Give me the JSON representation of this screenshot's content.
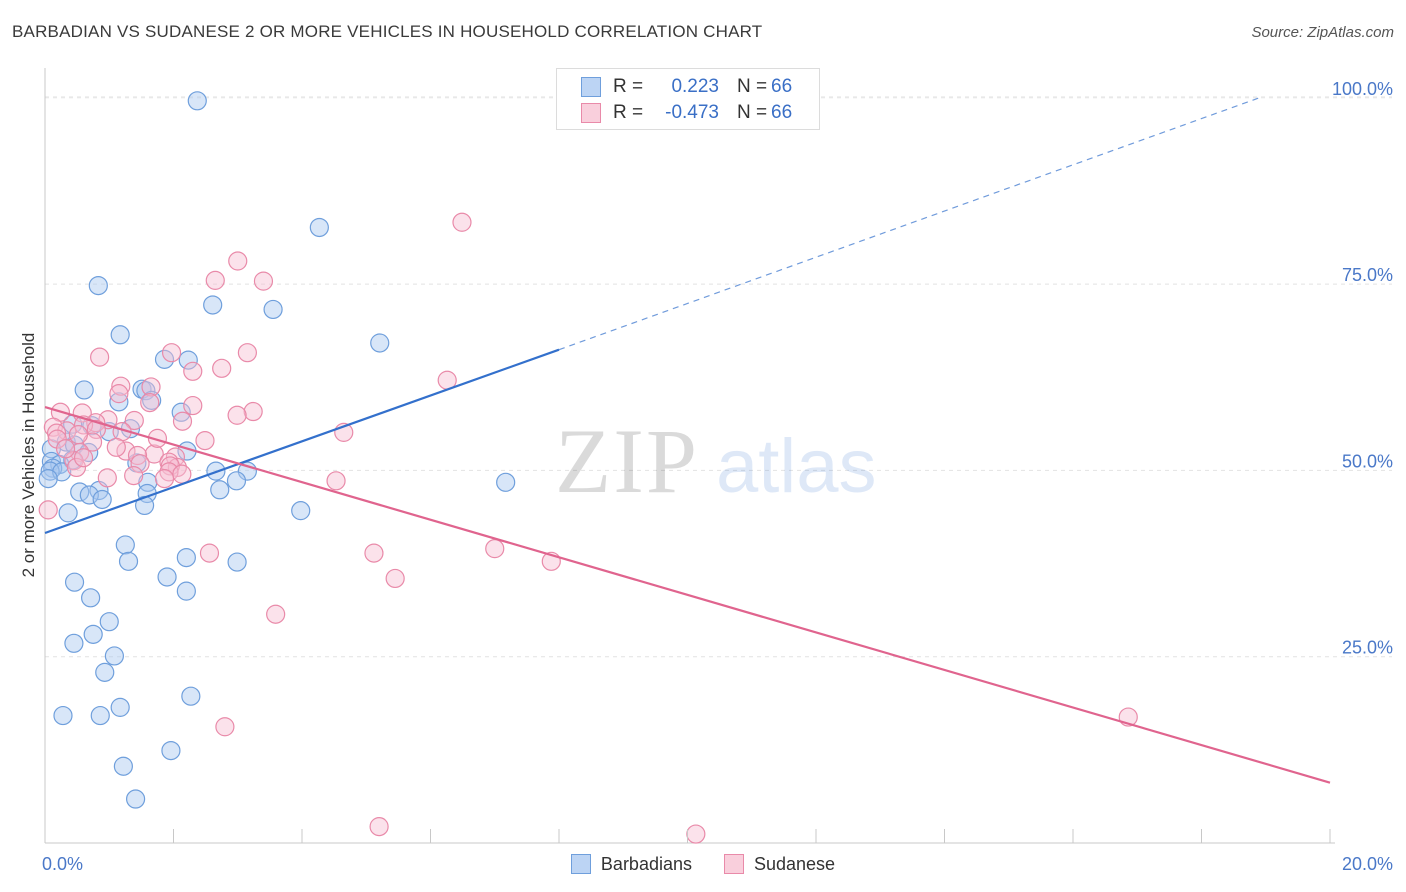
{
  "title": "BARBADIAN VS SUDANESE 2 OR MORE VEHICLES IN HOUSEHOLD CORRELATION CHART",
  "source": "Source: ZipAtlas.com",
  "watermark": {
    "zip": "ZIP",
    "atlas": "atlas"
  },
  "legend_top": [
    {
      "r_label": "R =",
      "r_value": "0.223",
      "n_label": "N =",
      "n_value": "66"
    },
    {
      "r_label": "R =",
      "r_value": "-0.473",
      "n_label": "N =",
      "n_value": "66"
    }
  ],
  "legend_bottom": [
    "Barbadians",
    "Sudanese"
  ],
  "colors": {
    "barbadians_fill": "#a9c8f0",
    "barbadians_stroke": "#6f9fdc",
    "barbadians_line": "#3370cc",
    "sudanese_fill": "#f6bfd2",
    "sudanese_stroke": "#e98aa9",
    "sudanese_line": "#e0648e",
    "tick_label": "#4a78c8"
  },
  "chart_data": {
    "type": "scatter",
    "title": "BARBADIAN VS SUDANESE 2 OR MORE VEHICLES IN HOUSEHOLD CORRELATION CHART",
    "xlabel": "",
    "ylabel": "2 or more Vehicles in Household",
    "xlim": [
      0,
      20
    ],
    "ylim": [
      0,
      104
    ],
    "x_tick_labels": [
      "0.0%",
      "20.0%"
    ],
    "x_tick_values": [
      0,
      20
    ],
    "y_tick_labels": [
      "25.0%",
      "50.0%",
      "75.0%",
      "100.0%"
    ],
    "y_tick_values": [
      25,
      50,
      75,
      100
    ],
    "grid": "horizontal dashed",
    "legend_position": "top-center",
    "series": [
      {
        "name": "Barbadians",
        "r": 0.223,
        "n": 66,
        "trend": {
          "x0": 0,
          "y0": 41.6,
          "x1": 8.0,
          "y1": 66.2,
          "extend_to_x": 18.9,
          "extend_y": 100
        },
        "points": [
          [
            2.37,
            99.6
          ],
          [
            4.27,
            82.6
          ],
          [
            0.83,
            74.8
          ],
          [
            2.61,
            72.2
          ],
          [
            3.55,
            71.6
          ],
          [
            1.17,
            68.2
          ],
          [
            5.21,
            67.1
          ],
          [
            2.23,
            64.8
          ],
          [
            1.86,
            64.9
          ],
          [
            1.51,
            60.9
          ],
          [
            0.61,
            60.8
          ],
          [
            1.57,
            60.7
          ],
          [
            1.66,
            59.4
          ],
          [
            1.15,
            59.2
          ],
          [
            2.12,
            57.8
          ],
          [
            0.43,
            56.2
          ],
          [
            0.73,
            56.0
          ],
          [
            1.33,
            55.6
          ],
          [
            1.0,
            55.2
          ],
          [
            0.33,
            53.8
          ],
          [
            0.46,
            53.4
          ],
          [
            0.1,
            52.9
          ],
          [
            2.21,
            52.6
          ],
          [
            0.68,
            52.4
          ],
          [
            0.43,
            51.4
          ],
          [
            0.1,
            51.2
          ],
          [
            1.43,
            51.0
          ],
          [
            0.23,
            50.8
          ],
          [
            0.12,
            50.3
          ],
          [
            0.08,
            49.9
          ],
          [
            0.26,
            49.8
          ],
          [
            2.66,
            49.9
          ],
          [
            3.15,
            49.9
          ],
          [
            0.05,
            48.9
          ],
          [
            2.98,
            48.6
          ],
          [
            7.17,
            48.4
          ],
          [
            1.6,
            48.4
          ],
          [
            2.72,
            47.4
          ],
          [
            0.84,
            47.3
          ],
          [
            0.54,
            47.1
          ],
          [
            0.69,
            46.7
          ],
          [
            1.59,
            46.9
          ],
          [
            0.89,
            46.1
          ],
          [
            1.55,
            45.3
          ],
          [
            3.98,
            44.6
          ],
          [
            0.36,
            44.3
          ],
          [
            1.25,
            40.0
          ],
          [
            2.2,
            38.3
          ],
          [
            1.3,
            37.8
          ],
          [
            2.99,
            37.7
          ],
          [
            1.9,
            35.7
          ],
          [
            0.46,
            35.0
          ],
          [
            2.2,
            33.8
          ],
          [
            0.71,
            32.9
          ],
          [
            1.0,
            29.7
          ],
          [
            0.75,
            28.0
          ],
          [
            0.45,
            26.8
          ],
          [
            1.08,
            25.1
          ],
          [
            0.93,
            22.9
          ],
          [
            2.27,
            19.7
          ],
          [
            1.17,
            18.2
          ],
          [
            0.28,
            17.1
          ],
          [
            0.86,
            17.1
          ],
          [
            1.96,
            12.4
          ],
          [
            1.22,
            10.3
          ],
          [
            1.41,
            5.9
          ]
        ]
      },
      {
        "name": "Sudanese",
        "r": -0.473,
        "n": 66,
        "trend": {
          "x0": 0,
          "y0": 58.5,
          "x1": 20.0,
          "y1": 8.1
        },
        "points": [
          [
            6.49,
            83.3
          ],
          [
            3.0,
            78.1
          ],
          [
            2.65,
            75.5
          ],
          [
            3.4,
            75.4
          ],
          [
            3.15,
            65.8
          ],
          [
            0.85,
            65.2
          ],
          [
            1.97,
            65.8
          ],
          [
            2.3,
            63.3
          ],
          [
            2.75,
            63.7
          ],
          [
            6.26,
            62.1
          ],
          [
            1.18,
            61.3
          ],
          [
            1.65,
            61.2
          ],
          [
            1.15,
            60.3
          ],
          [
            1.63,
            59.1
          ],
          [
            2.3,
            58.7
          ],
          [
            3.24,
            57.9
          ],
          [
            0.58,
            57.7
          ],
          [
            0.24,
            57.8
          ],
          [
            2.99,
            57.4
          ],
          [
            0.98,
            56.8
          ],
          [
            1.39,
            56.7
          ],
          [
            2.14,
            56.6
          ],
          [
            0.79,
            56.4
          ],
          [
            0.6,
            56.1
          ],
          [
            0.13,
            55.8
          ],
          [
            0.8,
            55.5
          ],
          [
            1.2,
            55.2
          ],
          [
            4.65,
            55.1
          ],
          [
            0.34,
            55.3
          ],
          [
            0.18,
            55.0
          ],
          [
            0.74,
            53.8
          ],
          [
            2.49,
            54.0
          ],
          [
            1.26,
            52.6
          ],
          [
            0.54,
            52.4
          ],
          [
            1.7,
            52.2
          ],
          [
            1.44,
            52.0
          ],
          [
            2.03,
            51.8
          ],
          [
            1.93,
            51.1
          ],
          [
            0.45,
            51.3
          ],
          [
            1.48,
            50.9
          ],
          [
            0.49,
            50.4
          ],
          [
            2.06,
            50.4
          ],
          [
            1.95,
            50.6
          ],
          [
            1.93,
            49.8
          ],
          [
            1.38,
            49.3
          ],
          [
            0.97,
            49.0
          ],
          [
            1.86,
            48.9
          ],
          [
            4.53,
            48.6
          ],
          [
            0.05,
            44.7
          ],
          [
            7.0,
            39.5
          ],
          [
            2.56,
            38.9
          ],
          [
            5.12,
            38.9
          ],
          [
            7.88,
            37.8
          ],
          [
            5.45,
            35.5
          ],
          [
            3.59,
            30.7
          ],
          [
            16.86,
            16.9
          ],
          [
            2.8,
            15.6
          ],
          [
            5.2,
            2.2
          ],
          [
            10.13,
            1.2
          ],
          [
            0.19,
            54.2
          ],
          [
            0.32,
            52.9
          ],
          [
            0.6,
            51.7
          ],
          [
            1.11,
            53.1
          ],
          [
            2.13,
            49.5
          ],
          [
            1.75,
            54.3
          ],
          [
            0.52,
            54.8
          ]
        ]
      }
    ]
  }
}
